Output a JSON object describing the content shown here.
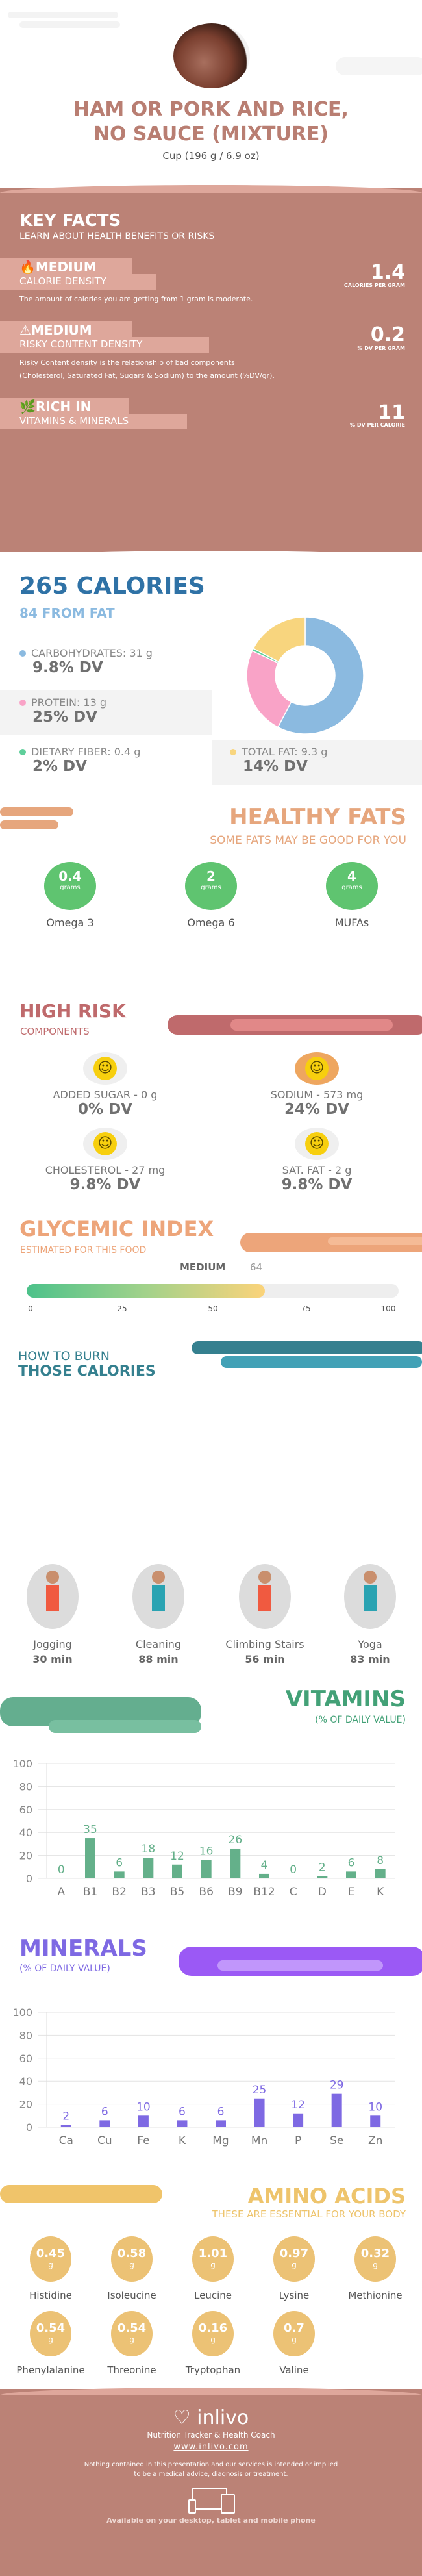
{
  "header": {
    "title_line1": "HAM OR PORK AND RICE,",
    "title_line2": "NO SAUCE (MIXTURE)",
    "serving": "Cup (196 g / 6.9 oz)"
  },
  "key_facts": {
    "title": "KEY FACTS",
    "subtitle": "LEARN ABOUT HEALTH BENEFITS OR RISKS",
    "items": [
      {
        "icon": "flame-icon",
        "level": "MEDIUM",
        "label": "CALORIE DENSITY",
        "value": "1.4",
        "unit": "CALORIES PER GRAM",
        "desc": "The amount of calories you are getting from 1 gram is moderate."
      },
      {
        "icon": "warning-icon",
        "level": "MEDIUM",
        "label": "RISKY CONTENT DENSITY",
        "value": "0.2",
        "unit": "% DV PER GRAM",
        "desc": "Risky Content density is the relationship of bad components",
        "desc2": "(Cholesterol, Saturated Fat, Sugars & Sodium) to the amount (%DV/gr)."
      },
      {
        "icon": "leaf-icon",
        "level": "RICH  IN",
        "label": "VITAMINS & MINERALS",
        "value": "11",
        "unit": "% DV PER CALORIE"
      }
    ]
  },
  "calories": {
    "title": "265 CALORIES",
    "from_fat": "84 FROM FAT",
    "macros": [
      {
        "label": "CARBOHYDRATES: 31 g",
        "dv": "9.8% DV",
        "color": "#8bbae0"
      },
      {
        "label": "PROTEIN: 13 g",
        "dv": "25% DV",
        "color": "#f9a3c7"
      },
      {
        "label": "DIETARY FIBER: 0.4 g",
        "dv": "2% DV",
        "color": "#5fcf9b"
      },
      {
        "label": "TOTAL FAT: 9.3 g",
        "dv": "14% DV",
        "color": "#f8d57e"
      }
    ]
  },
  "chart_data": [
    {
      "type": "pie",
      "donut": true,
      "categories": [
        "Carbohydrates",
        "Protein",
        "Dietary Fiber",
        "Total Fat"
      ],
      "values": [
        31,
        13,
        0.4,
        9.3
      ],
      "colors": [
        "#8bbae0",
        "#f9a3c7",
        "#5fcf9b",
        "#f8d57e"
      ]
    },
    {
      "type": "bar",
      "title": "VITAMINS",
      "subtitle": "(% OF DAILY VALUE)",
      "categories": [
        "A",
        "B1",
        "B2",
        "B3",
        "B5",
        "B6",
        "B9",
        "B12",
        "C",
        "D",
        "E",
        "K"
      ],
      "values": [
        0,
        35,
        6,
        18,
        12,
        16,
        26,
        4,
        0,
        2,
        6,
        8
      ],
      "ylim": [
        0,
        100
      ],
      "yticks": [
        "0",
        "20",
        "40",
        "60",
        "80",
        "100"
      ],
      "grid": true,
      "color": "#64b08a"
    },
    {
      "type": "bar",
      "title": "MINERALS",
      "subtitle": "(% OF DAILY VALUE)",
      "categories": [
        "Ca",
        "Cu",
        "Fe",
        "K",
        "Mg",
        "Mn",
        "P",
        "Se",
        "Zn"
      ],
      "values": [
        2,
        6,
        10,
        6,
        6,
        25,
        12,
        29,
        10
      ],
      "ylim": [
        0,
        100
      ],
      "yticks": [
        "0",
        "20",
        "40",
        "60",
        "80",
        "100"
      ],
      "grid": true,
      "color": "#7e69e3"
    }
  ],
  "healthy_fats": {
    "title": "HEALTHY FATS",
    "subtitle": "SOME FATS MAY BE GOOD FOR YOU",
    "unit": "grams",
    "items": [
      {
        "value": "0.4",
        "label": "Omega 3"
      },
      {
        "value": "2",
        "label": "Omega 6"
      },
      {
        "value": "4",
        "label": "MUFAs"
      }
    ]
  },
  "high_risk": {
    "title": "HIGH RISK",
    "subtitle": "COMPONENTS",
    "items": [
      {
        "label": "ADDED SUGAR - 0 g",
        "dv": "0% DV",
        "face": "☺"
      },
      {
        "label": "SODIUM - 573 mg",
        "dv": "24% DV",
        "face": "☺"
      },
      {
        "label": "CHOLESTEROL - 27 mg",
        "dv": "9.8% DV",
        "face": "☺"
      },
      {
        "label": "SAT. FAT - 2 g",
        "dv": "9.8% DV",
        "face": "☺"
      }
    ]
  },
  "glycemic": {
    "title": "GLYCEMIC INDEX",
    "subtitle": "ESTIMATED FOR THIS FOOD",
    "level": "MEDIUM",
    "value": "64",
    "percent": 64,
    "ticks": [
      "0",
      "25",
      "50",
      "75",
      "100"
    ]
  },
  "burn": {
    "title1": "HOW TO BURN",
    "title2": "THOSE CALORIES",
    "items": [
      {
        "label": "Jogging",
        "time": "30 min"
      },
      {
        "label": "Cleaning",
        "time": "88 min"
      },
      {
        "label": "Climbing Stairs",
        "time": "56 min"
      },
      {
        "label": "Yoga",
        "time": "83 min"
      }
    ]
  },
  "amino": {
    "title": "AMINO ACIDS",
    "subtitle": "THESE ARE ESSENTIAL FOR YOUR BODY",
    "unit": "g",
    "items": [
      {
        "value": "0.45",
        "label": "Histidine"
      },
      {
        "value": "0.58",
        "label": "Isoleucine"
      },
      {
        "value": "1.01",
        "label": "Leucine"
      },
      {
        "value": "0.97",
        "label": "Lysine"
      },
      {
        "value": "0.32",
        "label": "Methionine"
      },
      {
        "value": "0.54",
        "label": "Phenylalanine"
      },
      {
        "value": "0.54",
        "label": "Threonine"
      },
      {
        "value": "0.16",
        "label": "Tryptophan"
      },
      {
        "value": "0.7",
        "label": "Valine"
      }
    ]
  },
  "footer": {
    "brand": "inlivo",
    "tagline": "Nutrition Tracker & Health Coach",
    "url": "www.inlivo.com",
    "disclaimer1": "Nothing contained in this presentation and our services is intended or implied",
    "disclaimer2": "to be a medical advice, diagnosis or treatment.",
    "available": "Available on your desktop, tablet and mobile phone"
  }
}
